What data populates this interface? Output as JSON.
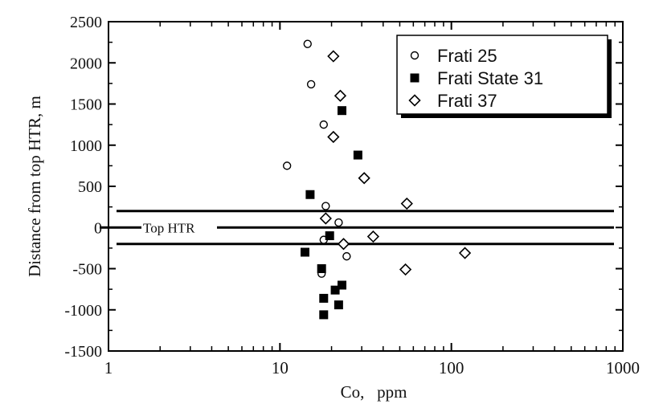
{
  "chart_data": {
    "type": "scatter",
    "xlabel": "Co,   ppm",
    "ylabel": "Distance from top HTR, m",
    "xscale": "log",
    "xlim": [
      1,
      1000
    ],
    "ylim": [
      -1500,
      2500
    ],
    "xticks": [
      1,
      10,
      100,
      1000
    ],
    "xtick_labels": [
      "1",
      "10",
      "100",
      "1000"
    ],
    "yticks": [
      -1500,
      -1000,
      -500,
      0,
      500,
      1000,
      1500,
      2000,
      2500
    ],
    "ytick_labels": [
      "-1500",
      "-1000",
      "-500",
      "0",
      "500",
      "1000",
      "1500",
      "2000",
      "2500"
    ],
    "grid": false,
    "legend_position": "top-right",
    "reference_lines": [
      {
        "y": 200,
        "label": ""
      },
      {
        "y": 0,
        "label": "Top HTR"
      },
      {
        "y": -200,
        "label": ""
      }
    ],
    "series": [
      {
        "name": "Frati 25",
        "marker": "open-circle",
        "x": [
          14.5,
          15.2,
          11.0,
          18.0,
          18.5,
          22.0,
          18.0,
          24.5,
          17.5
        ],
        "y": [
          2230,
          1740,
          750,
          1250,
          260,
          60,
          -150,
          -350,
          -560
        ]
      },
      {
        "name": "Frati State 31",
        "marker": "filled-square",
        "x": [
          23.0,
          28.5,
          15.0,
          19.5,
          14.0,
          17.5,
          23.0,
          21.0,
          18.0,
          22.0,
          18.0
        ],
        "y": [
          1420,
          880,
          400,
          -100,
          -300,
          -500,
          -700,
          -760,
          -860,
          -940,
          -1060
        ]
      },
      {
        "name": "Frati 37",
        "marker": "open-diamond",
        "x": [
          20.5,
          22.5,
          20.5,
          31.0,
          55.0,
          18.5,
          35.0,
          23.5,
          120.0,
          54.0
        ],
        "y": [
          2080,
          1600,
          1100,
          600,
          290,
          110,
          -110,
          -200,
          -310,
          -510
        ]
      }
    ]
  }
}
